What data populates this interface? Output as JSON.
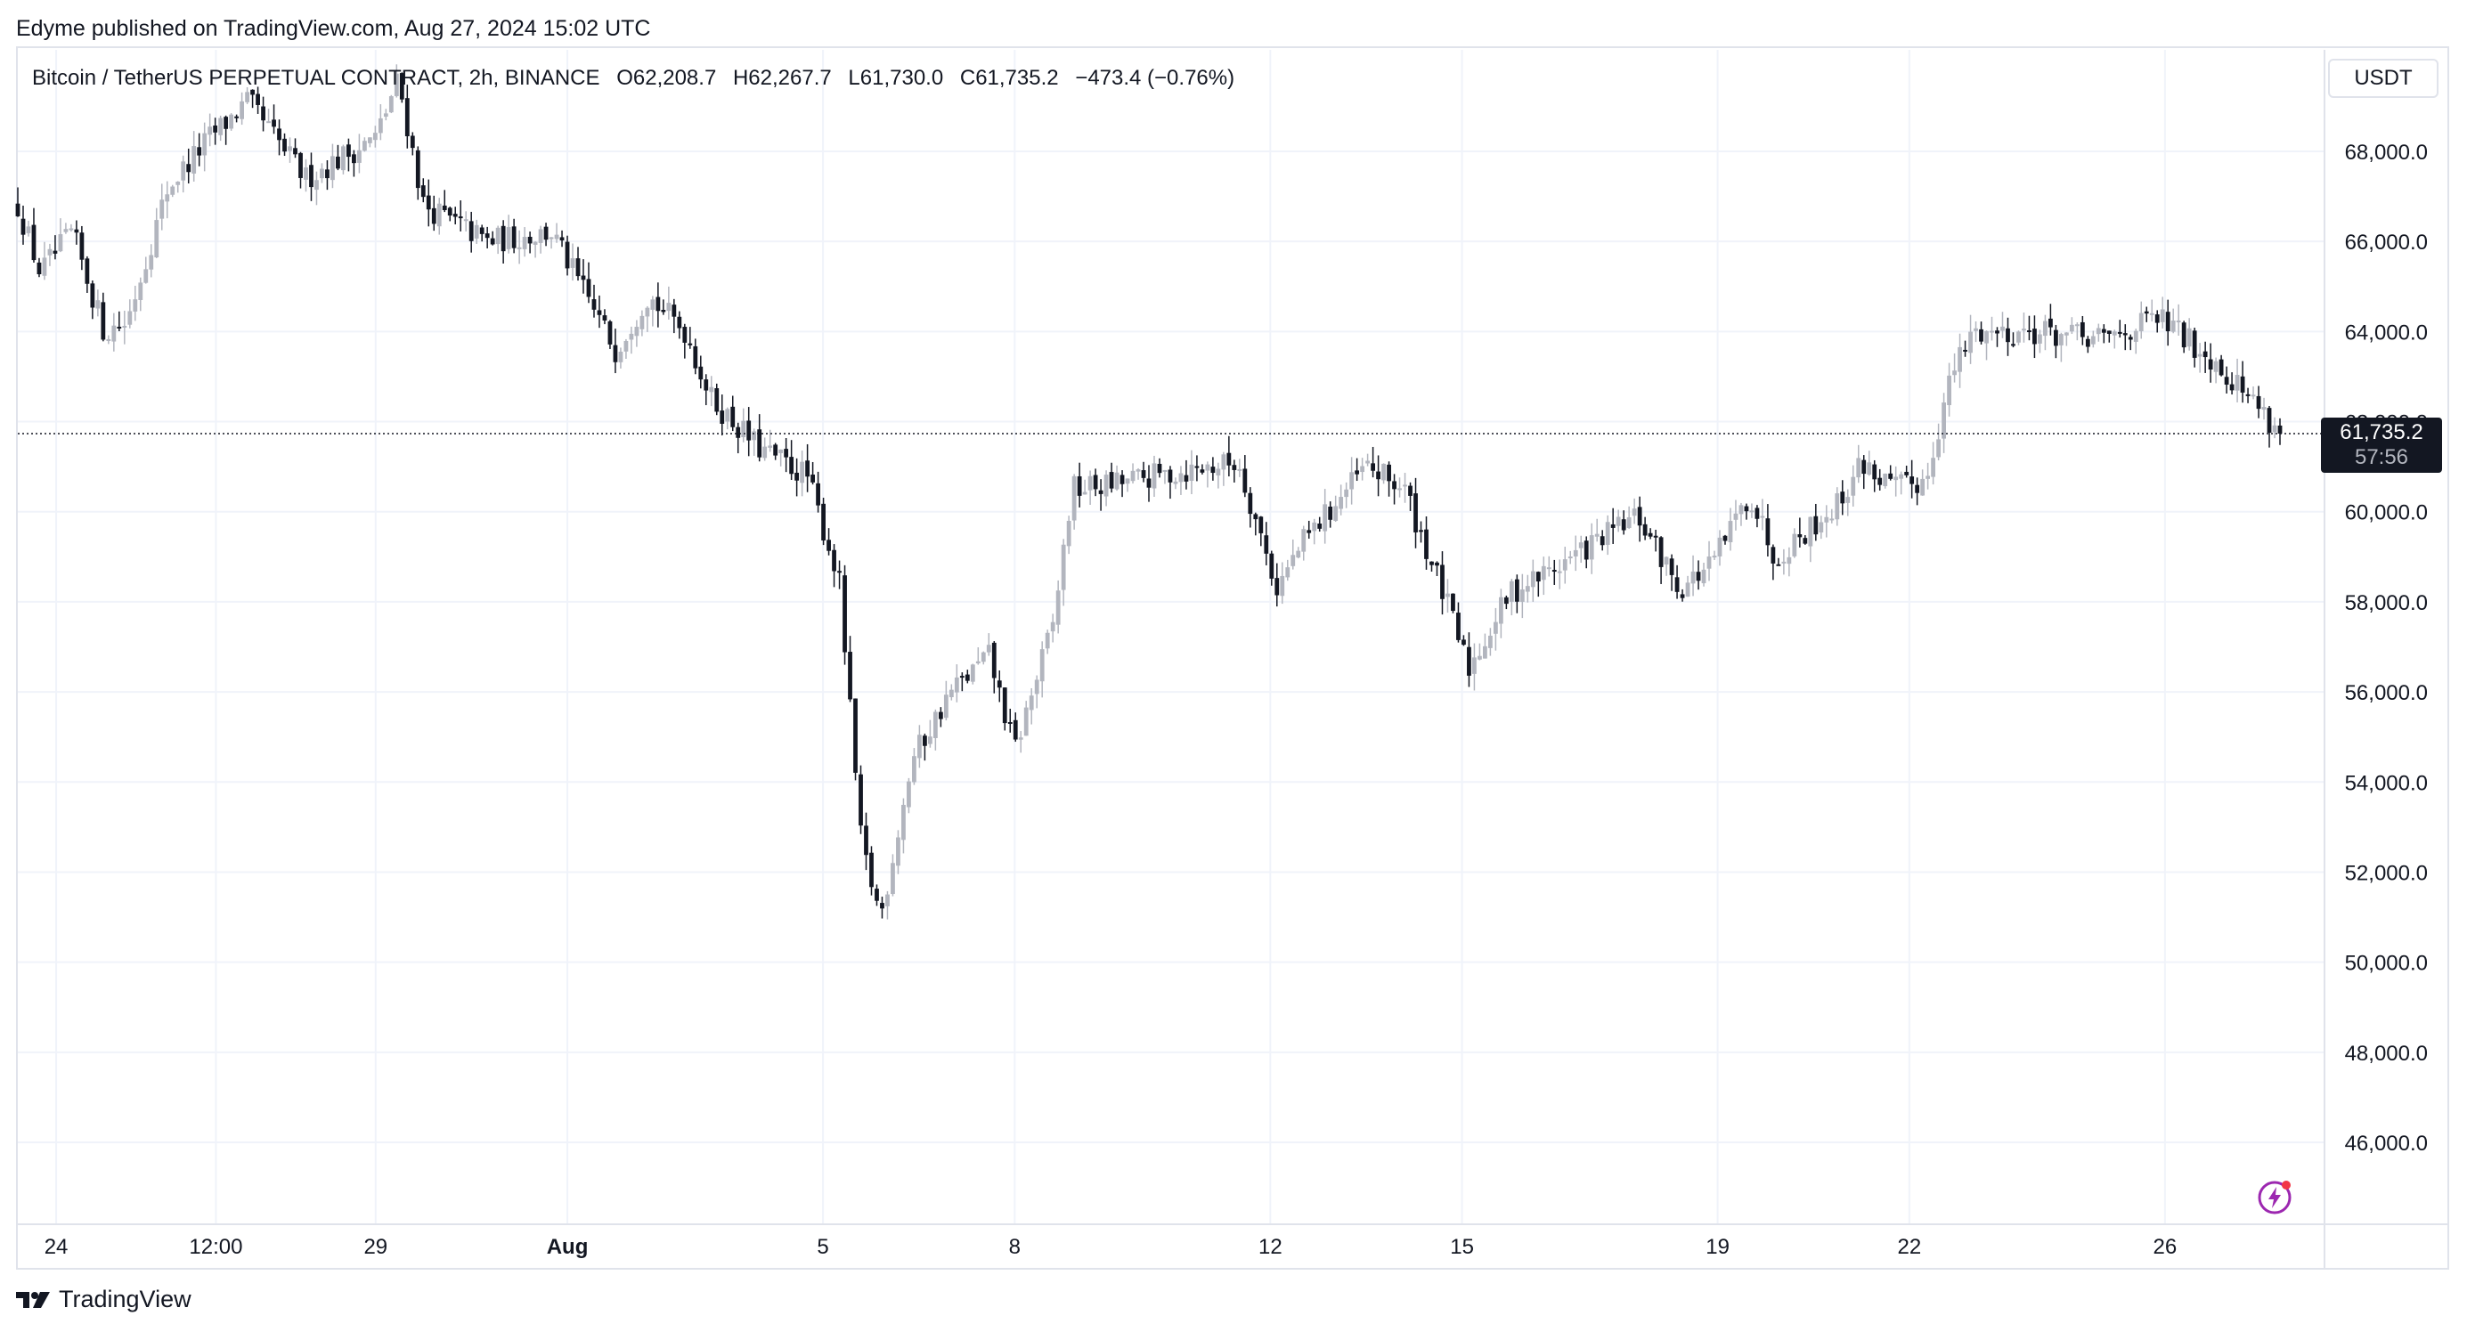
{
  "publisher_line": "Edyme published on TradingView.com, Aug 27, 2024 15:02 UTC",
  "legend": {
    "symbol": "Bitcoin / TetherUS PERPETUAL CONTRACT, 2h, BINANCE",
    "open": "O62,208.7",
    "high": "H62,267.7",
    "low": "L61,730.0",
    "close": "C61,735.2",
    "change": "−473.4 (−0.76%)"
  },
  "currency": "USDT",
  "last_price": {
    "price_label": "61,735.2",
    "countdown": "57:56",
    "value": 61735.2
  },
  "brand": "TradingView",
  "colors": {
    "up": "#b2b5be",
    "down": "#131722",
    "grid": "#f0f3fa",
    "text": "#131722",
    "accent": "#9c27b0"
  },
  "icons": [
    "tradingview-logo-icon",
    "lightning-icon"
  ],
  "chart_data": {
    "type": "candlestick",
    "interval": "2h",
    "ylim": [
      44000,
      70000
    ],
    "yticks": [
      46000,
      48000,
      50000,
      52000,
      54000,
      56000,
      58000,
      60000,
      62000,
      64000,
      66000,
      68000
    ],
    "ytick_labels": [
      "46,000.0",
      "48,000.0",
      "50,000.0",
      "52,000.0",
      "54,000.0",
      "56,000.0",
      "58,000.0",
      "60,000.0",
      "62,000.0",
      "64,000.0",
      "66,000.0",
      "68,000.0"
    ],
    "xticks": [
      {
        "label": "24",
        "day": 0
      },
      {
        "label": "12:00",
        "day": 0.5
      },
      {
        "label": "29",
        "day": 1
      },
      {
        "label": "Aug",
        "day": 1.6
      },
      {
        "label": "5",
        "day": 2.4
      },
      {
        "label": "8",
        "day": 3
      },
      {
        "label": "12",
        "day": 3.8
      },
      {
        "label": "15",
        "day": 4.4
      },
      {
        "label": "19",
        "day": 5.2
      },
      {
        "label": "22",
        "day": 5.8
      },
      {
        "label": "26",
        "day": 6.6
      }
    ],
    "day_range": [
      -0.12,
      6.96
    ],
    "anchors": [
      [
        -0.12,
        66800
      ],
      [
        -0.05,
        65300
      ],
      [
        0.05,
        66200
      ],
      [
        0.15,
        64000
      ],
      [
        0.22,
        64200
      ],
      [
        0.35,
        67200
      ],
      [
        0.48,
        68300
      ],
      [
        0.6,
        69100
      ],
      [
        0.78,
        67400
      ],
      [
        1.0,
        68300
      ],
      [
        1.07,
        69600
      ],
      [
        1.15,
        66800
      ],
      [
        1.35,
        66000
      ],
      [
        1.55,
        66200
      ],
      [
        1.75,
        63600
      ],
      [
        1.85,
        64800
      ],
      [
        1.97,
        64000
      ],
      [
        2.05,
        62500
      ],
      [
        2.2,
        61400
      ],
      [
        2.35,
        60800
      ],
      [
        2.45,
        58500
      ],
      [
        2.52,
        52600
      ],
      [
        2.58,
        51000
      ],
      [
        2.68,
        54500
      ],
      [
        2.8,
        56000
      ],
      [
        2.92,
        56800
      ],
      [
        3.0,
        54700
      ],
      [
        3.12,
        57500
      ],
      [
        3.18,
        60500
      ],
      [
        3.3,
        60600
      ],
      [
        3.45,
        60800
      ],
      [
        3.7,
        61100
      ],
      [
        3.82,
        58300
      ],
      [
        3.9,
        59300
      ],
      [
        4.1,
        61000
      ],
      [
        4.22,
        60500
      ],
      [
        4.35,
        58000
      ],
      [
        4.42,
        56500
      ],
      [
        4.55,
        58200
      ],
      [
        4.7,
        58800
      ],
      [
        4.95,
        59900
      ],
      [
        5.08,
        58300
      ],
      [
        5.18,
        58800
      ],
      [
        5.3,
        60400
      ],
      [
        5.38,
        59000
      ],
      [
        5.58,
        60200
      ],
      [
        5.65,
        61100
      ],
      [
        5.75,
        60500
      ],
      [
        5.85,
        60700
      ],
      [
        5.93,
        63000
      ],
      [
        6.0,
        64000
      ],
      [
        6.2,
        64000
      ],
      [
        6.4,
        63800
      ],
      [
        6.58,
        64300
      ],
      [
        6.75,
        63400
      ],
      [
        6.9,
        62300
      ],
      [
        6.96,
        61735
      ]
    ]
  }
}
